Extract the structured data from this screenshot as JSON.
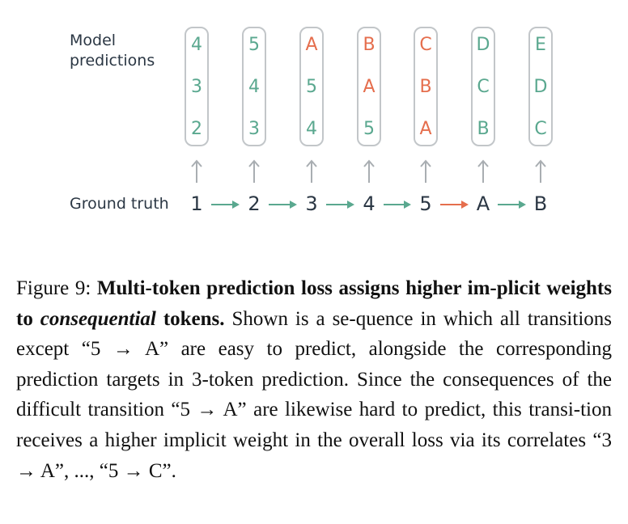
{
  "diagram": {
    "model_label_line1": "Model",
    "model_label_line2": "predictions",
    "ground_truth_label": "Ground truth",
    "columns": [
      {
        "tokens": [
          {
            "t": "4",
            "c": "green"
          },
          {
            "t": "3",
            "c": "green"
          },
          {
            "t": "2",
            "c": "green"
          }
        ]
      },
      {
        "tokens": [
          {
            "t": "5",
            "c": "green"
          },
          {
            "t": "4",
            "c": "green"
          },
          {
            "t": "3",
            "c": "green"
          }
        ]
      },
      {
        "tokens": [
          {
            "t": "A",
            "c": "orange"
          },
          {
            "t": "5",
            "c": "green"
          },
          {
            "t": "4",
            "c": "green"
          }
        ]
      },
      {
        "tokens": [
          {
            "t": "B",
            "c": "orange"
          },
          {
            "t": "A",
            "c": "orange"
          },
          {
            "t": "5",
            "c": "green"
          }
        ]
      },
      {
        "tokens": [
          {
            "t": "C",
            "c": "orange"
          },
          {
            "t": "B",
            "c": "orange"
          },
          {
            "t": "A",
            "c": "orange"
          }
        ]
      },
      {
        "tokens": [
          {
            "t": "D",
            "c": "green"
          },
          {
            "t": "C",
            "c": "green"
          },
          {
            "t": "B",
            "c": "green"
          }
        ]
      },
      {
        "tokens": [
          {
            "t": "E",
            "c": "green"
          },
          {
            "t": "D",
            "c": "green"
          },
          {
            "t": "C",
            "c": "green"
          }
        ]
      }
    ],
    "ground_truth": [
      "1",
      "2",
      "3",
      "4",
      "5",
      "A",
      "B"
    ],
    "transition_colors": [
      "green",
      "green",
      "green",
      "green",
      "orange",
      "green"
    ],
    "colors": {
      "green": "#5aa88f",
      "orange": "#e56e4d",
      "gray": "#a9aeb2",
      "text": "#2b3744"
    }
  },
  "caption": {
    "figure_label": "Figure 9:",
    "bold_part1": "Multi-token prediction loss assigns higher im-plicit weights to",
    "bold_italic": "consequential",
    "bold_part2": "tokens.",
    "body": "Shown is a se-quence in which all transitions except “5 → A” are easy to predict, alongside the corresponding prediction targets in 3-token prediction. Since the consequences of the difficult transition “5 → A” are likewise hard to predict, this transi-tion receives a higher implicit weight in the overall loss via its correlates “3 → A”, ..., “5 → C”."
  }
}
